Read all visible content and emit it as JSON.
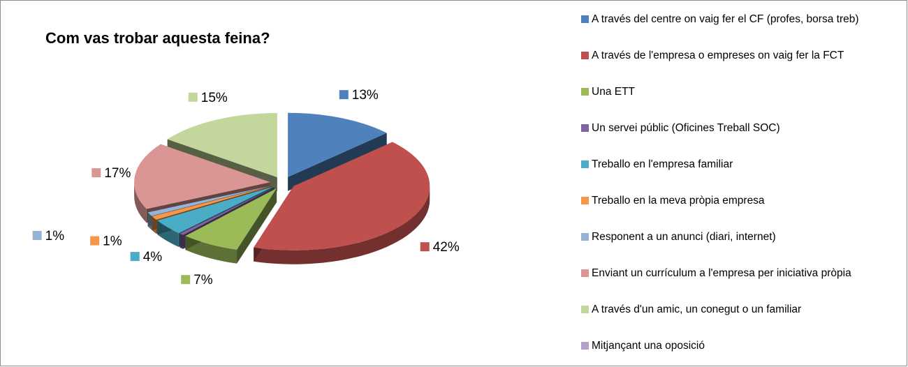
{
  "chart_data": {
    "type": "pie3d",
    "title": "Com vas trobar aquesta feina?",
    "categories": [
      "A través del centre on vaig fer el CF (profes, borsa treb)",
      "A través de l'empresa o empreses on vaig fer la FCT",
      "Una ETT",
      "Un servei públic (Oficines Treball SOC)",
      "Treballo en l'empresa familiar",
      "Treballo en la meva pròpia empresa",
      "Responent a un anunci (diari, internet)",
      "Enviant un currículum a l'empresa per iniciativa pròpia",
      "A través d'un amic, un conegut o un familiar",
      "Mitjançant una oposició"
    ],
    "values": [
      13,
      42,
      7,
      0.5,
      4,
      1,
      1,
      17,
      15,
      0
    ],
    "value_labels": [
      "13%",
      "42%",
      "7%",
      null,
      "4%",
      "1%",
      "1%",
      "17%",
      "15%",
      null
    ],
    "colors": [
      "#4f81bd",
      "#c0504d",
      "#9bbb59",
      "#8064a2",
      "#4bacc6",
      "#f79646",
      "#95b3d7",
      "#d99694",
      "#c3d69b",
      "#b3a2c7"
    ],
    "legend": "right"
  }
}
